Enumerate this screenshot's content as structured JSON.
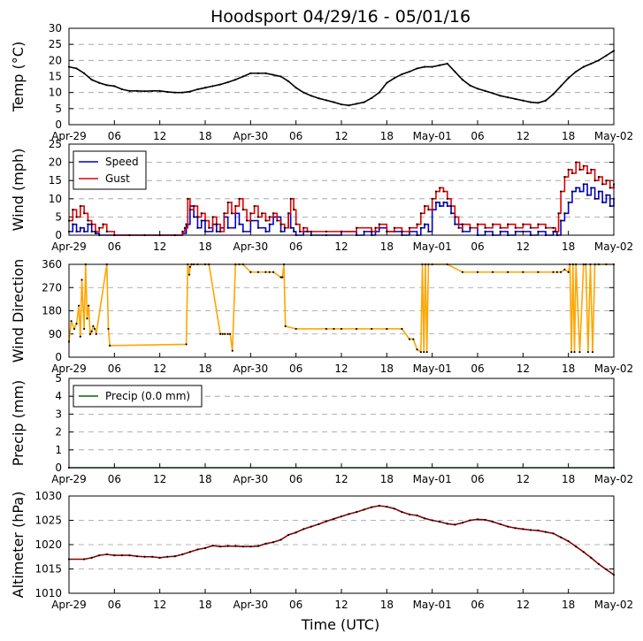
{
  "chart_data": {
    "type": "line",
    "title": "Hoodsport 04/29/16 - 05/01/16",
    "xlabel": "Time (UTC)",
    "xlim": [
      0,
      72
    ],
    "xticks": [
      0,
      6,
      12,
      18,
      24,
      30,
      36,
      42,
      48,
      54,
      60,
      66,
      72
    ],
    "xtick_labels": [
      "Apr-29",
      "06",
      "12",
      "18",
      "Apr-30",
      "06",
      "12",
      "18",
      "May-01",
      "06",
      "12",
      "18",
      "May-02"
    ],
    "panels": [
      {
        "id": "temp",
        "ylabel": "Temp (°C)",
        "ylim": [
          0,
          30
        ],
        "yticks": [
          0,
          5,
          10,
          15,
          20,
          25,
          30
        ],
        "grid": true,
        "series": [
          {
            "name": "Temp",
            "color": "#000000",
            "step": false,
            "x": [
              0,
              1,
              2,
              3,
              4,
              5,
              6,
              7,
              8,
              9,
              10,
              11,
              12,
              13,
              14,
              15,
              16,
              17,
              18,
              19,
              20,
              21,
              22,
              23,
              24,
              25,
              26,
              27,
              28,
              29,
              30,
              31,
              32,
              33,
              34,
              35,
              36,
              37,
              38,
              39,
              40,
              41,
              42,
              43,
              44,
              45,
              46,
              47,
              48,
              49,
              50,
              51,
              52,
              53,
              54,
              55,
              56,
              57,
              58,
              59,
              60,
              61,
              62,
              63,
              64,
              65,
              66,
              67,
              68,
              69,
              70,
              71,
              72
            ],
            "y": [
              18,
              17.5,
              16,
              14,
              13,
              12.3,
              12,
              11,
              10.5,
              10.5,
              10.4,
              10.5,
              10.5,
              10.2,
              10,
              10,
              10.3,
              11,
              11.5,
              12,
              12.5,
              13.2,
              14,
              15,
              16,
              16,
              16,
              15.5,
              15,
              13.5,
              11.5,
              10,
              9,
              8.2,
              7.6,
              7,
              6.3,
              6,
              6.5,
              7,
              8.3,
              10,
              13,
              14.5,
              15.7,
              16.5,
              17.5,
              18,
              18,
              18.5,
              19,
              16.5,
              14,
              12.2,
              11.2,
              10.5,
              9.8,
              9,
              8.5,
              8,
              7.5,
              7,
              6.8,
              7.5,
              9.5,
              12,
              14.5,
              16.5,
              18,
              19,
              20,
              21.5,
              23
            ]
          }
        ]
      },
      {
        "id": "wind",
        "ylabel": "Wind (mph)",
        "ylim": [
          0,
          25
        ],
        "yticks": [
          0,
          5,
          10,
          15,
          20,
          25
        ],
        "grid": true,
        "legend": "upper-left",
        "series": [
          {
            "name": "Speed",
            "color": "#0000cc",
            "step": true,
            "x": [
              0,
              0.5,
              1,
              1.5,
              2,
              2.5,
              3,
              3.5,
              4,
              6,
              8,
              10,
              12,
              14,
              15,
              15.5,
              16,
              16.5,
              17,
              17.5,
              18,
              19,
              19.5,
              20,
              20.5,
              21,
              22,
              22.5,
              23,
              24,
              25,
              26,
              26.5,
              27,
              28,
              28.5,
              29,
              29.3,
              29.7,
              30,
              31,
              32,
              34,
              36,
              38,
              39,
              40,
              40.5,
              41,
              42,
              43,
              44,
              45,
              46,
              46.5,
              47,
              47.5,
              48,
              48.5,
              49,
              49.5,
              50,
              50.5,
              51,
              52,
              53,
              54,
              55,
              56,
              57,
              58,
              59,
              60,
              61,
              62,
              63,
              64,
              64.5,
              65,
              65.5,
              66,
              66.5,
              67,
              67.5,
              68,
              68.5,
              69,
              69.5,
              70,
              70.5,
              71,
              71.5,
              72
            ],
            "y": [
              1,
              3,
              1,
              2,
              1,
              3,
              1,
              0.5,
              0,
              0,
              0,
              0,
              0,
              0,
              0.5,
              3,
              8,
              5,
              2,
              4,
              1,
              3,
              1,
              2,
              5,
              2,
              6,
              3,
              1,
              4,
              2,
              1,
              3,
              5,
              1,
              2,
              6,
              2,
              1,
              0,
              1,
              0,
              0,
              1,
              0,
              1,
              0,
              1,
              2,
              1,
              1,
              0,
              1,
              0,
              2,
              3,
              1,
              7,
              9,
              8,
              9,
              8,
              6,
              3,
              1,
              2,
              0,
              1,
              0,
              1,
              0,
              1,
              1,
              0,
              1,
              0,
              1,
              0,
              4,
              6,
              9,
              12,
              13,
              12,
              14,
              11,
              13,
              10,
              12,
              9,
              11,
              8,
              10
            ]
          },
          {
            "name": "Gust",
            "color": "#dd0000",
            "step": true,
            "x": [
              0,
              0.5,
              1,
              1.5,
              2,
              2.5,
              3,
              3.5,
              4,
              4.5,
              5,
              6,
              8,
              10,
              12,
              14,
              15,
              15.3,
              15.7,
              16,
              16.5,
              17,
              17.5,
              18,
              18.5,
              19,
              19.5,
              20,
              20.5,
              21,
              21.5,
              22,
              22.5,
              23,
              23.5,
              24,
              24.5,
              25,
              25.5,
              26,
              26.5,
              27,
              27.5,
              28,
              28.5,
              29,
              29.3,
              29.7,
              30,
              30.5,
              31,
              31.5,
              32,
              34,
              36,
              38,
              40,
              40.5,
              41,
              42,
              43,
              44,
              45,
              46,
              46.5,
              47,
              47.5,
              48,
              48.5,
              49,
              49.5,
              50,
              50.5,
              51,
              51.5,
              52,
              53,
              54,
              55,
              56,
              57,
              58,
              59,
              60,
              61,
              62,
              63,
              64,
              64.3,
              64.7,
              65,
              65.5,
              66,
              66.5,
              67,
              67.5,
              68,
              68.5,
              69,
              69.5,
              70,
              70.5,
              71,
              71.5,
              72
            ],
            "y": [
              4,
              7,
              5,
              8,
              6,
              4,
              3,
              1,
              2,
              3,
              1,
              0,
              0,
              0,
              0,
              0,
              1,
              2,
              10,
              7,
              8,
              5,
              6,
              4,
              2,
              5,
              3,
              1,
              6,
              9,
              6,
              8,
              10,
              7,
              4,
              6,
              8,
              5,
              6,
              4,
              5,
              6,
              4,
              3,
              2,
              6,
              10,
              7,
              3,
              1,
              2,
              1,
              1,
              1,
              1,
              2,
              1,
              2,
              3,
              1,
              2,
              1,
              2,
              3,
              6,
              8,
              7,
              10,
              12,
              13,
              12,
              10,
              8,
              5,
              2,
              3,
              2,
              3,
              2,
              3,
              2,
              3,
              2,
              3,
              2,
              3,
              2,
              2,
              1,
              6,
              12,
              16,
              18,
              17,
              20,
              18,
              19,
              17,
              18,
              15,
              16,
              14,
              15,
              13,
              14
            ]
          }
        ]
      },
      {
        "id": "dir",
        "ylabel": "Wind Direction",
        "ylim": [
          0,
          360
        ],
        "yticks": [
          0,
          90,
          180,
          270,
          360
        ],
        "grid": true,
        "series": [
          {
            "name": "Direction",
            "color": "#ffa500",
            "step": false,
            "x": [
              0,
              0.3,
              0.7,
              1,
              1.3,
              1.5,
              1.7,
              2,
              2.2,
              2.4,
              2.6,
              2.8,
              3,
              3.2,
              3.4,
              3.6,
              5,
              5.2,
              5.4,
              15.5,
              15.7,
              15.9,
              16,
              16.2,
              16.5,
              17,
              18,
              18.5,
              20,
              20.3,
              20.6,
              21,
              21.3,
              21.6,
              22,
              22.5,
              23,
              24,
              25,
              26,
              26.5,
              27,
              28,
              28.2,
              28.4,
              28.6,
              30,
              34,
              35,
              36,
              38,
              40,
              42,
              44,
              45,
              45.5,
              46,
              46.5,
              46.7,
              46.9,
              47.1,
              47.3,
              47.5,
              48,
              50,
              52,
              54,
              56,
              58,
              60,
              62,
              64,
              64.5,
              65,
              65.5,
              66,
              66.2,
              66.4,
              66.6,
              66.8,
              67,
              67.5,
              68,
              68.3,
              68.6,
              68.9,
              69.2,
              69.5,
              70,
              71,
              72
            ],
            "y": [
              60,
              140,
              110,
              130,
              200,
              80,
              300,
              110,
              360,
              150,
              200,
              90,
              100,
              120,
              110,
              90,
              360,
              110,
              45,
              50,
              360,
              320,
              350,
              360,
              360,
              360,
              360,
              360,
              90,
              90,
              90,
              90,
              90,
              25,
              360,
              360,
              360,
              330,
              330,
              330,
              330,
              330,
              310,
              310,
              360,
              120,
              110,
              110,
              110,
              110,
              110,
              110,
              110,
              110,
              70,
              70,
              30,
              20,
              360,
              20,
              360,
              20,
              360,
              360,
              360,
              330,
              330,
              330,
              330,
              330,
              330,
              330,
              330,
              330,
              340,
              330,
              360,
              20,
              360,
              20,
              360,
              20,
              360,
              360,
              20,
              360,
              20,
              360,
              360,
              360,
              360
            ]
          }
        ]
      },
      {
        "id": "precip",
        "ylabel": "Precip (mm)",
        "ylim": [
          0,
          5
        ],
        "yticks": [
          0,
          1,
          2,
          3,
          4,
          5
        ],
        "grid": true,
        "legend": "upper-left",
        "series": [
          {
            "name": "Precip (0.0 mm)",
            "color": "#006400",
            "step": false,
            "x": [
              0,
              72
            ],
            "y": [
              0,
              0
            ]
          }
        ]
      },
      {
        "id": "alt",
        "ylabel": "Altimeter (hPa)",
        "ylim": [
          1010,
          1030
        ],
        "yticks": [
          1010,
          1015,
          1020,
          1025,
          1030
        ],
        "grid": true,
        "series": [
          {
            "name": "Altimeter",
            "color": "#8b0000",
            "step": false,
            "x": [
              0,
              2,
              3,
              4,
              5,
              6,
              7,
              8,
              9,
              10,
              11,
              12,
              13,
              14,
              15,
              16,
              17,
              18,
              19,
              20,
              21,
              22,
              23,
              24,
              25,
              26,
              27,
              28,
              29,
              30,
              31,
              32,
              33,
              34,
              35,
              36,
              37,
              38,
              39,
              40,
              41,
              42,
              43,
              44,
              45,
              46,
              47,
              48,
              49,
              50,
              51,
              52,
              53,
              54,
              55,
              56,
              57,
              58,
              59,
              60,
              61,
              62,
              63,
              64,
              65,
              66,
              67,
              68,
              69,
              70,
              71,
              72
            ],
            "y": [
              1017,
              1017,
              1017.3,
              1017.8,
              1018,
              1017.8,
              1017.8,
              1017.8,
              1017.6,
              1017.5,
              1017.5,
              1017.3,
              1017.5,
              1017.6,
              1018,
              1018.5,
              1019,
              1019.3,
              1019.8,
              1019.6,
              1019.7,
              1019.7,
              1019.6,
              1019.6,
              1019.7,
              1020.2,
              1020.5,
              1021,
              1022,
              1022.5,
              1023.2,
              1023.7,
              1024.2,
              1024.8,
              1025.3,
              1025.8,
              1026.3,
              1026.7,
              1027.2,
              1027.7,
              1028,
              1027.8,
              1027.4,
              1026.7,
              1026.2,
              1026,
              1025.4,
              1025,
              1024.7,
              1024.3,
              1024.1,
              1024.5,
              1025,
              1025.2,
              1025.1,
              1024.7,
              1024.2,
              1023.7,
              1023.4,
              1023.2,
              1023,
              1022.9,
              1022.6,
              1022.3,
              1021.5,
              1020.7,
              1019.6,
              1018.5,
              1017.3,
              1016,
              1014.9,
              1013.8
            ]
          }
        ]
      }
    ]
  }
}
